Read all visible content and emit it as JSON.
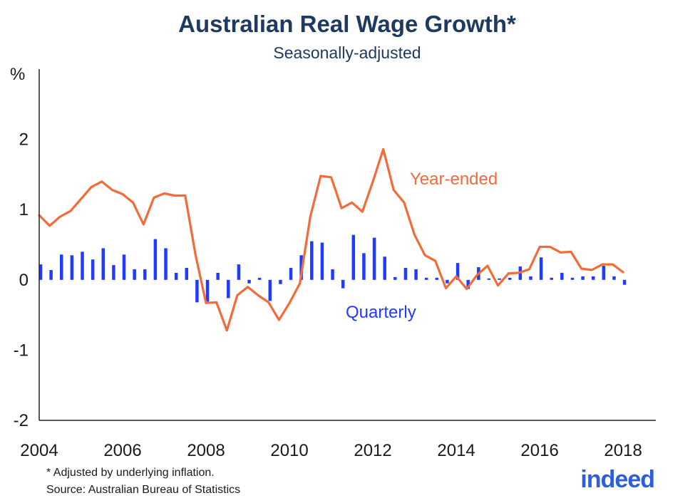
{
  "chart_data": {
    "type": "bar+line",
    "title": "Australian Real Wage Growth*",
    "subtitle": "Seasonally-adjusted",
    "ylabel": "%",
    "ylim": [
      -2,
      3
    ],
    "yticks": [
      -2,
      -1,
      0,
      1,
      2
    ],
    "xlim": [
      2004,
      2018.75
    ],
    "xticks": [
      2004,
      2006,
      2008,
      2010,
      2012,
      2014,
      2016,
      2018
    ],
    "grid": false,
    "colors": {
      "line": "#f26b38",
      "bars": "#1f3bff",
      "text": "#1f3a60",
      "logo": "#2d5fd8"
    },
    "series": [
      {
        "name": "Year-ended",
        "type": "line",
        "x": [
          2004.0,
          2004.25,
          2004.5,
          2004.75,
          2005.0,
          2005.25,
          2005.5,
          2005.75,
          2006.0,
          2006.25,
          2006.5,
          2006.75,
          2007.0,
          2007.25,
          2007.5,
          2007.75,
          2008.0,
          2008.25,
          2008.5,
          2008.75,
          2009.0,
          2009.25,
          2009.5,
          2009.75,
          2010.0,
          2010.25,
          2010.5,
          2010.75,
          2011.0,
          2011.25,
          2011.5,
          2011.75,
          2012.0,
          2012.25,
          2012.5,
          2012.75,
          2013.0,
          2013.25,
          2013.5,
          2013.75,
          2014.0,
          2014.25,
          2014.5,
          2014.75,
          2015.0,
          2015.25,
          2015.5,
          2015.75,
          2016.0,
          2016.25,
          2016.5,
          2016.75,
          2017.0,
          2017.25,
          2017.5,
          2017.75,
          2018.0
        ],
        "y": [
          0.92,
          0.77,
          0.9,
          0.98,
          1.15,
          1.32,
          1.4,
          1.28,
          1.22,
          1.1,
          0.79,
          1.17,
          1.23,
          1.2,
          1.2,
          0.35,
          -0.33,
          -0.32,
          -0.72,
          -0.22,
          -0.1,
          -0.22,
          -0.32,
          -0.57,
          -0.33,
          -0.05,
          0.9,
          1.48,
          1.46,
          1.02,
          1.1,
          0.97,
          1.4,
          1.86,
          1.28,
          1.1,
          0.64,
          0.35,
          0.27,
          -0.12,
          0.05,
          -0.13,
          0.07,
          0.2,
          -0.08,
          0.09,
          0.1,
          0.15,
          0.47,
          0.47,
          0.39,
          0.4,
          0.16,
          0.14,
          0.22,
          0.22,
          0.11
        ]
      },
      {
        "name": "Quarterly",
        "type": "bar",
        "x": [
          2004.0,
          2004.25,
          2004.5,
          2004.75,
          2005.0,
          2005.25,
          2005.5,
          2005.75,
          2006.0,
          2006.25,
          2006.5,
          2006.75,
          2007.0,
          2007.25,
          2007.5,
          2007.75,
          2008.0,
          2008.25,
          2008.5,
          2008.75,
          2009.0,
          2009.25,
          2009.5,
          2009.75,
          2010.0,
          2010.25,
          2010.5,
          2010.75,
          2011.0,
          2011.25,
          2011.5,
          2011.75,
          2012.0,
          2012.25,
          2012.5,
          2012.75,
          2013.0,
          2013.25,
          2013.5,
          2013.75,
          2014.0,
          2014.25,
          2014.5,
          2014.75,
          2015.0,
          2015.25,
          2015.5,
          2015.75,
          2016.0,
          2016.25,
          2016.5,
          2016.75,
          2017.0,
          2017.25,
          2017.5,
          2017.75,
          2018.0
        ],
        "y": [
          0.22,
          0.14,
          0.36,
          0.35,
          0.4,
          0.29,
          0.45,
          0.21,
          0.36,
          0.15,
          0.15,
          0.58,
          0.45,
          0.1,
          0.17,
          -0.32,
          -0.31,
          0.1,
          -0.26,
          0.22,
          -0.05,
          0.03,
          -0.3,
          -0.06,
          0.17,
          0.35,
          0.55,
          0.53,
          0.15,
          -0.12,
          0.64,
          0.38,
          0.6,
          0.33,
          0.04,
          0.17,
          0.15,
          0.03,
          0.03,
          -0.05,
          0.24,
          -0.13,
          0.18,
          0.02,
          0.02,
          0.03,
          0.19,
          0.05,
          0.32,
          0.03,
          0.1,
          0.03,
          0.05,
          0.05,
          0.2,
          0.05,
          -0.07
        ]
      }
    ],
    "annotations": [
      {
        "text": "Year-ended",
        "series": "Year-ended"
      },
      {
        "text": "Quarterly",
        "series": "Quarterly"
      }
    ]
  },
  "footnote": "* Adjusted by underlying inflation.",
  "source": "Source: Australian Bureau of Statistics",
  "logo_text": "indeed"
}
